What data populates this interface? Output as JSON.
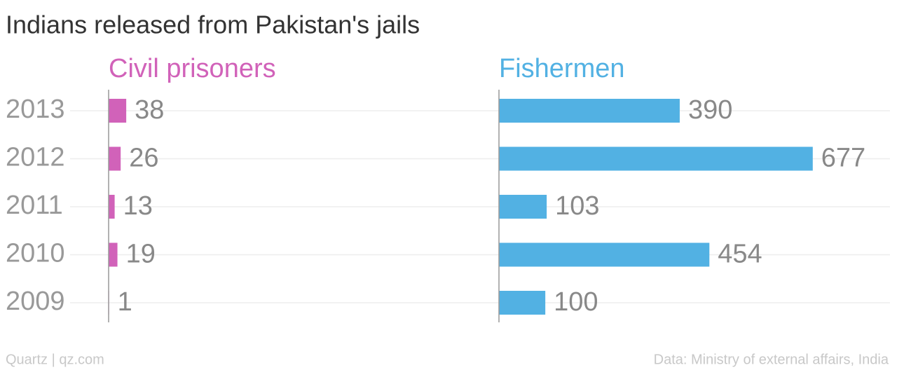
{
  "title": "Indians released from Pakistan's jails",
  "credit": "Quartz | qz.com",
  "source": "Data: Ministry of external affairs, India",
  "chart_data": [
    {
      "type": "bar",
      "title": "Civil prisoners",
      "color": "#d162b9",
      "categories": [
        "2013",
        "2012",
        "2011",
        "2010",
        "2009"
      ],
      "values": [
        38,
        26,
        13,
        19,
        1
      ],
      "xlim": [
        0,
        700
      ]
    },
    {
      "type": "bar",
      "title": "Fishermen",
      "color": "#52b1e3",
      "values": [
        390,
        677,
        103,
        454,
        100
      ],
      "xlim": [
        0,
        700
      ]
    }
  ]
}
